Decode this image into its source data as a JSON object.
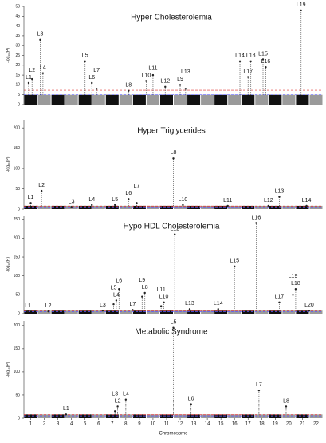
{
  "chart_data": [
    {
      "type": "manhattan",
      "title": "Hyper Cholesterolemia",
      "y_label": "-log₁₀(P)",
      "ylim": [
        0,
        50
      ],
      "yticks": [
        0,
        5,
        10,
        15,
        20,
        25,
        30,
        35,
        40,
        45,
        50
      ],
      "thresholds": [
        {
          "value": 7.3,
          "color": "#e0302f"
        },
        {
          "value": 5,
          "color": "#5a5aff"
        }
      ],
      "noise": 5,
      "colors": [
        "#111111",
        "#9a9a9a"
      ],
      "peaks": [
        {
          "label": "L1",
          "chr": 0.85,
          "value": 11
        },
        {
          "label": "L2",
          "chr": 1.1,
          "value": 13
        },
        {
          "label": "L3",
          "chr": 1.7,
          "value": 33
        },
        {
          "label": "L4",
          "chr": 1.9,
          "value": 16
        },
        {
          "label": "L5",
          "chr": 5,
          "value": 22
        },
        {
          "label": "L6",
          "chr": 5.5,
          "value": 11
        },
        {
          "label": "L7",
          "chr": 5.85,
          "value": 8
        },
        {
          "label": "L8",
          "chr": 8.2,
          "value": 7
        },
        {
          "label": "L9",
          "chr": 12,
          "value": 10
        },
        {
          "label": "L10",
          "chr": 9.5,
          "value": 12
        },
        {
          "label": "L11",
          "chr": 10,
          "value": 15
        },
        {
          "label": "L12",
          "chr": 10.9,
          "value": 9
        },
        {
          "label": "L13",
          "chr": 12.4,
          "value": 8
        },
        {
          "label": "L14",
          "chr": 16.4,
          "value": 22
        },
        {
          "label": "L15",
          "chr": 18.1,
          "value": 23
        },
        {
          "label": "L16",
          "chr": 18.3,
          "value": 19
        },
        {
          "label": "L17",
          "chr": 17,
          "value": 14
        },
        {
          "label": "L18",
          "chr": 17.2,
          "value": 22
        },
        {
          "label": "L19",
          "chr": 20.9,
          "value": 48
        }
      ]
    },
    {
      "type": "manhattan",
      "title": "Hyper Triglycerides",
      "y_label": "-log₁₀(P)",
      "ylim": [
        0,
        220
      ],
      "yticks": [
        0,
        50,
        100,
        150,
        200
      ],
      "thresholds": [
        {
          "value": 7.3,
          "color": "#e0302f"
        },
        {
          "value": 5,
          "color": "#5a5aff"
        }
      ],
      "noise": 8,
      "colors": [
        "#111111",
        "#9a9a9a"
      ],
      "peaks": [
        {
          "label": "L1",
          "chr": 1,
          "value": 15
        },
        {
          "label": "L2",
          "chr": 1.8,
          "value": 45
        },
        {
          "label": "L3",
          "chr": 4,
          "value": 5
        },
        {
          "label": "L4",
          "chr": 5.5,
          "value": 10
        },
        {
          "label": "L5",
          "chr": 7.2,
          "value": 10
        },
        {
          "label": "L6",
          "chr": 8.2,
          "value": 25
        },
        {
          "label": "L7",
          "chr": 8.8,
          "value": 15
        },
        {
          "label": "L8",
          "chr": 11.5,
          "value": 125
        },
        {
          "label": "L10",
          "chr": 12.2,
          "value": 10
        },
        {
          "label": "L11",
          "chr": 15.5,
          "value": 8
        },
        {
          "label": "L12",
          "chr": 18.5,
          "value": 8
        },
        {
          "label": "L13",
          "chr": 19.3,
          "value": 30
        },
        {
          "label": "L14",
          "chr": 21.3,
          "value": 8
        }
      ]
    },
    {
      "type": "manhattan",
      "title": "Hypo HDL Cholesterolemia",
      "y_label": "-log₁₀(P)",
      "ylim": [
        0,
        260
      ],
      "yticks": [
        0,
        50,
        100,
        150,
        200,
        250
      ],
      "thresholds": [
        {
          "value": 7.3,
          "color": "#e0302f"
        },
        {
          "value": 5,
          "color": "#5a5aff"
        }
      ],
      "noise": 8,
      "colors": [
        "#111111",
        "#9a9a9a"
      ],
      "peaks": [
        {
          "label": "L1",
          "chr": 0.8,
          "value": 6
        },
        {
          "label": "L2",
          "chr": 2.3,
          "value": 6
        },
        {
          "label": "L3",
          "chr": 6.3,
          "value": 8
        },
        {
          "label": "L4",
          "chr": 7.3,
          "value": 35
        },
        {
          "label": "L5",
          "chr": 7.1,
          "value": 25
        },
        {
          "label": "L6",
          "chr": 7.5,
          "value": 65
        },
        {
          "label": "L7",
          "chr": 8.5,
          "value": 10
        },
        {
          "label": "L8",
          "chr": 9.4,
          "value": 55
        },
        {
          "label": "L9",
          "chr": 9.2,
          "value": 45
        },
        {
          "label": "L10",
          "chr": 10.8,
          "value": 30
        },
        {
          "label": "L11",
          "chr": 10.6,
          "value": 20
        },
        {
          "label": "L12",
          "chr": 11.6,
          "value": 210
        },
        {
          "label": "L13",
          "chr": 12.7,
          "value": 12
        },
        {
          "label": "L14",
          "chr": 14.8,
          "value": 12
        },
        {
          "label": "L15",
          "chr": 16,
          "value": 125
        },
        {
          "label": "L16",
          "chr": 17.6,
          "value": 240
        },
        {
          "label": "L17",
          "chr": 19.3,
          "value": 30
        },
        {
          "label": "L18",
          "chr": 20.5,
          "value": 65
        },
        {
          "label": "L19",
          "chr": 20.3,
          "value": 50
        },
        {
          "label": "L20",
          "chr": 21.5,
          "value": 8
        }
      ]
    },
    {
      "type": "manhattan",
      "title": "Metabolic Syndrome",
      "y_label": "-log₁₀(P)",
      "x_label": "Chromosome",
      "ylim": [
        0,
        210
      ],
      "yticks": [
        0,
        50,
        100,
        150,
        200
      ],
      "thresholds": [
        {
          "value": 7.3,
          "color": "#e0302f"
        },
        {
          "value": 5,
          "color": "#5a5aff"
        }
      ],
      "noise": 8,
      "colors": [
        "#111111",
        "#9a9a9a"
      ],
      "categories": [
        "1",
        "2",
        "3",
        "4",
        "5",
        "6",
        "7",
        "8",
        "9",
        "10",
        "11",
        "12",
        "13",
        "14",
        "15",
        "16",
        "17",
        "18",
        "19",
        "20",
        "21",
        "22"
      ],
      "peaks": [
        {
          "label": "L1",
          "chr": 3.6,
          "value": 8
        },
        {
          "label": "L2",
          "chr": 7.4,
          "value": 25
        },
        {
          "label": "L3",
          "chr": 7.2,
          "value": 15
        },
        {
          "label": "L4",
          "chr": 8,
          "value": 40
        },
        {
          "label": "L5",
          "chr": 11.5,
          "value": 195
        },
        {
          "label": "L6",
          "chr": 12.8,
          "value": 30
        },
        {
          "label": "L7",
          "chr": 17.8,
          "value": 60
        },
        {
          "label": "L8",
          "chr": 19.8,
          "value": 25
        }
      ]
    }
  ]
}
